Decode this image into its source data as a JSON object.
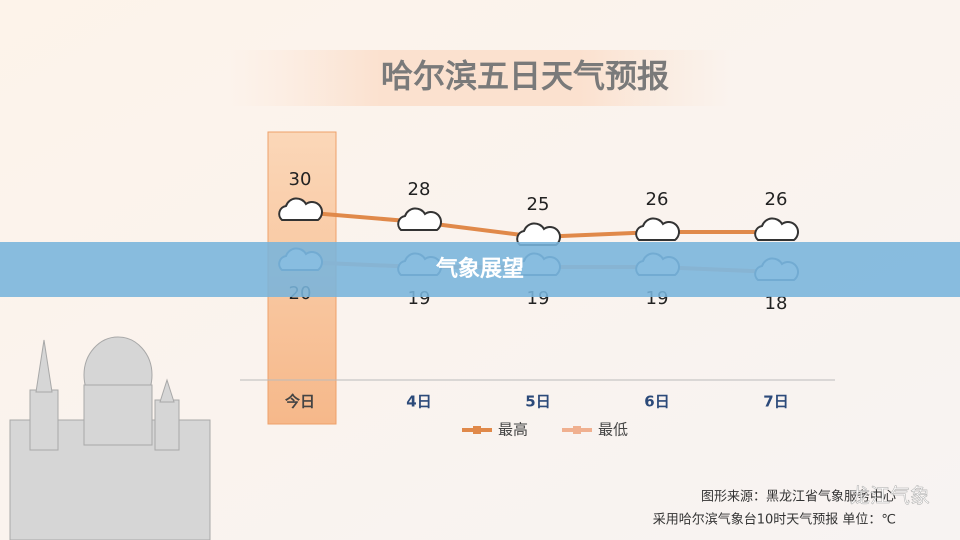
{
  "chart_data": {
    "type": "line",
    "title": "哈尔滨五日天气预报",
    "categories": [
      "今日",
      "4日",
      "5日",
      "6日",
      "7日"
    ],
    "series": [
      {
        "name": "最高",
        "color": "#e0894a",
        "values": [
          30,
          28,
          25,
          26,
          26
        ]
      },
      {
        "name": "最低",
        "color": "#f0b090",
        "values": [
          20,
          19,
          19,
          19,
          18
        ]
      }
    ],
    "legend": "bottom"
  },
  "banner": "气象展望",
  "source": [
    "图形来源：黑龙江省气象服务中心",
    "采用哈尔滨气象台10时天气预报 单位：℃"
  ],
  "watermark": "龙江气象"
}
